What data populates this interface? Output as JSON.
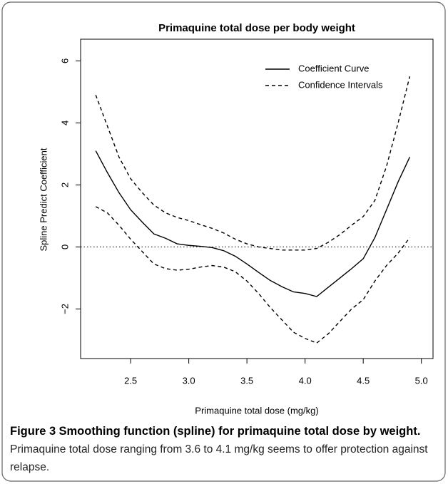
{
  "chart_data": {
    "type": "line",
    "title": "Primaquine total dose per body weight",
    "x_label": "Primaquine total dose (mg/kg)",
    "y_label": "Spline Predict Coefficient",
    "x": [
      2.2,
      2.3,
      2.4,
      2.5,
      2.6,
      2.7,
      2.8,
      2.9,
      3.0,
      3.1,
      3.2,
      3.3,
      3.4,
      3.5,
      3.6,
      3.7,
      3.8,
      3.9,
      4.0,
      4.1,
      4.2,
      4.3,
      4.4,
      4.5,
      4.6,
      4.7,
      4.8,
      4.9
    ],
    "series": [
      {
        "name": "Coefficient Curve",
        "color": "#000000",
        "style": "solid",
        "values": [
          3.1,
          2.4,
          1.75,
          1.2,
          0.8,
          0.42,
          0.28,
          0.1,
          0.05,
          0.02,
          -0.02,
          -0.12,
          -0.3,
          -0.55,
          -0.82,
          -1.08,
          -1.28,
          -1.45,
          -1.5,
          -1.6,
          -1.3,
          -1.0,
          -0.7,
          -0.38,
          0.3,
          1.2,
          2.1,
          2.9
        ]
      },
      {
        "name": "Confidence Intervals",
        "color": "#000000",
        "style": "dashed",
        "upper": [
          4.9,
          3.9,
          2.9,
          2.2,
          1.75,
          1.35,
          1.1,
          0.95,
          0.85,
          0.72,
          0.6,
          0.45,
          0.25,
          0.1,
          0.0,
          -0.05,
          -0.1,
          -0.1,
          -0.1,
          -0.05,
          0.15,
          0.4,
          0.7,
          0.98,
          1.5,
          2.6,
          4.0,
          5.5
        ],
        "lower": [
          1.3,
          1.1,
          0.7,
          0.25,
          -0.15,
          -0.55,
          -0.7,
          -0.75,
          -0.72,
          -0.65,
          -0.6,
          -0.65,
          -0.8,
          -1.1,
          -1.5,
          -1.95,
          -2.35,
          -2.75,
          -2.95,
          -3.1,
          -2.8,
          -2.4,
          -2.0,
          -1.7,
          -1.1,
          -0.6,
          -0.2,
          0.3
        ]
      }
    ],
    "reference_line": 0,
    "xlim": [
      2.07,
      5.1
    ],
    "xticks": [
      2.5,
      {
        "value": 3,
        "label": "3.0"
      },
      3.5,
      {
        "value": 4,
        "label": "4.0"
      },
      4.5,
      {
        "value": 5,
        "label": "5.0"
      }
    ],
    "ylim": [
      -3.6,
      6.7
    ],
    "yticks": [
      -2,
      0,
      2,
      4,
      6
    ],
    "yticks_labels": [
      "−2",
      "0",
      "2",
      "4",
      "6"
    ],
    "legend": "topright",
    "grid": false
  },
  "caption": {
    "label": "Figure 3",
    "title": "Smoothing function (spline) for primaquine total dose by weight.",
    "text": "Primaquine total dose ranging from 3.6 to 4.1 mg/kg seems to offer protection against relapse."
  }
}
